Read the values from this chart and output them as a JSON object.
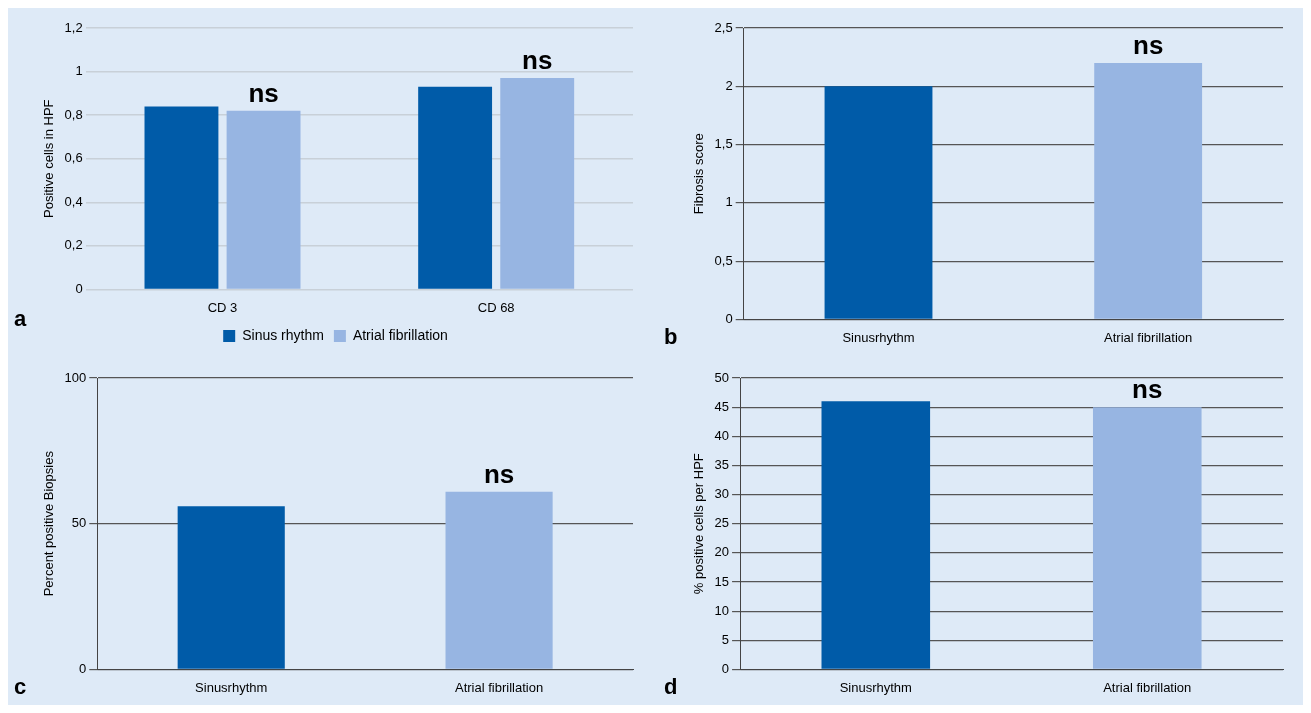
{
  "chart_data": [
    {
      "type": "bar",
      "ylabel": "Positive cells in HPF",
      "categories": [
        "CD 3",
        "CD 68"
      ],
      "series": [
        {
          "name": "Sinus rhythm",
          "color": "#005ba8",
          "values": [
            0.84,
            0.93
          ]
        },
        {
          "name": "Atrial fibrillation",
          "color": "#97b5e2",
          "values": [
            0.82,
            0.97
          ]
        }
      ],
      "ylim": [
        0,
        1.2
      ],
      "yticks": [
        0,
        {
          "value": 0.2,
          "label": "0,2"
        },
        {
          "value": 0.4,
          "label": "0,4"
        },
        {
          "value": 0.6,
          "label": "0,6"
        },
        {
          "value": 0.8,
          "label": "0,8"
        },
        1,
        {
          "value": 1.2,
          "label": "1,2"
        }
      ],
      "grid": "y",
      "legend": "bottom",
      "annotations": [
        "a",
        {
          "text": "ns",
          "x": "CD 3",
          "y": 0.82
        },
        {
          "text": "ns",
          "x": "CD 68",
          "y": 0.97
        }
      ]
    },
    {
      "type": "bar",
      "ylabel": "Fibrosis score",
      "categories": [
        "Sinusrhythm",
        "Atrial fibrillation"
      ],
      "values": [
        2.0,
        2.2
      ],
      "colors": [
        "#005ba8",
        "#97b5e2"
      ],
      "ylim": [
        0,
        2.5
      ],
      "yticks": [
        0,
        {
          "value": 0.5,
          "label": "0,5"
        },
        1,
        {
          "value": 1.5,
          "label": "1,5"
        },
        2,
        {
          "value": 2.5,
          "label": "2,5"
        }
      ],
      "grid": "y",
      "annotations": [
        "b",
        {
          "text": "ns",
          "x": "Atrial fibrillation",
          "y": 2.2
        }
      ]
    },
    {
      "type": "bar",
      "ylabel": "Percent positive Biopsies",
      "categories": [
        "Sinusrhythm",
        "Atrial fibrillation"
      ],
      "values": [
        56,
        61
      ],
      "colors": [
        "#005ba8",
        "#97b5e2"
      ],
      "ylim": [
        0,
        100
      ],
      "yticks": [
        0,
        50,
        100
      ],
      "grid": "y",
      "annotations": [
        "c",
        {
          "text": "ns",
          "x": "Atrial fibrillation",
          "y": 61
        }
      ]
    },
    {
      "type": "bar",
      "ylabel": "% positive cells per HPF",
      "categories": [
        "Sinusrhythm",
        "Atrial fibrillation"
      ],
      "values": [
        46,
        45
      ],
      "colors": [
        "#005ba8",
        "#97b5e2"
      ],
      "ylim": [
        0,
        50
      ],
      "yticks": [
        0,
        5,
        10,
        15,
        20,
        25,
        30,
        35,
        40,
        45,
        50
      ],
      "grid": "y",
      "annotations": [
        "d",
        {
          "text": "ns",
          "x": "Atrial fibrillation",
          "y": 45
        }
      ]
    }
  ]
}
